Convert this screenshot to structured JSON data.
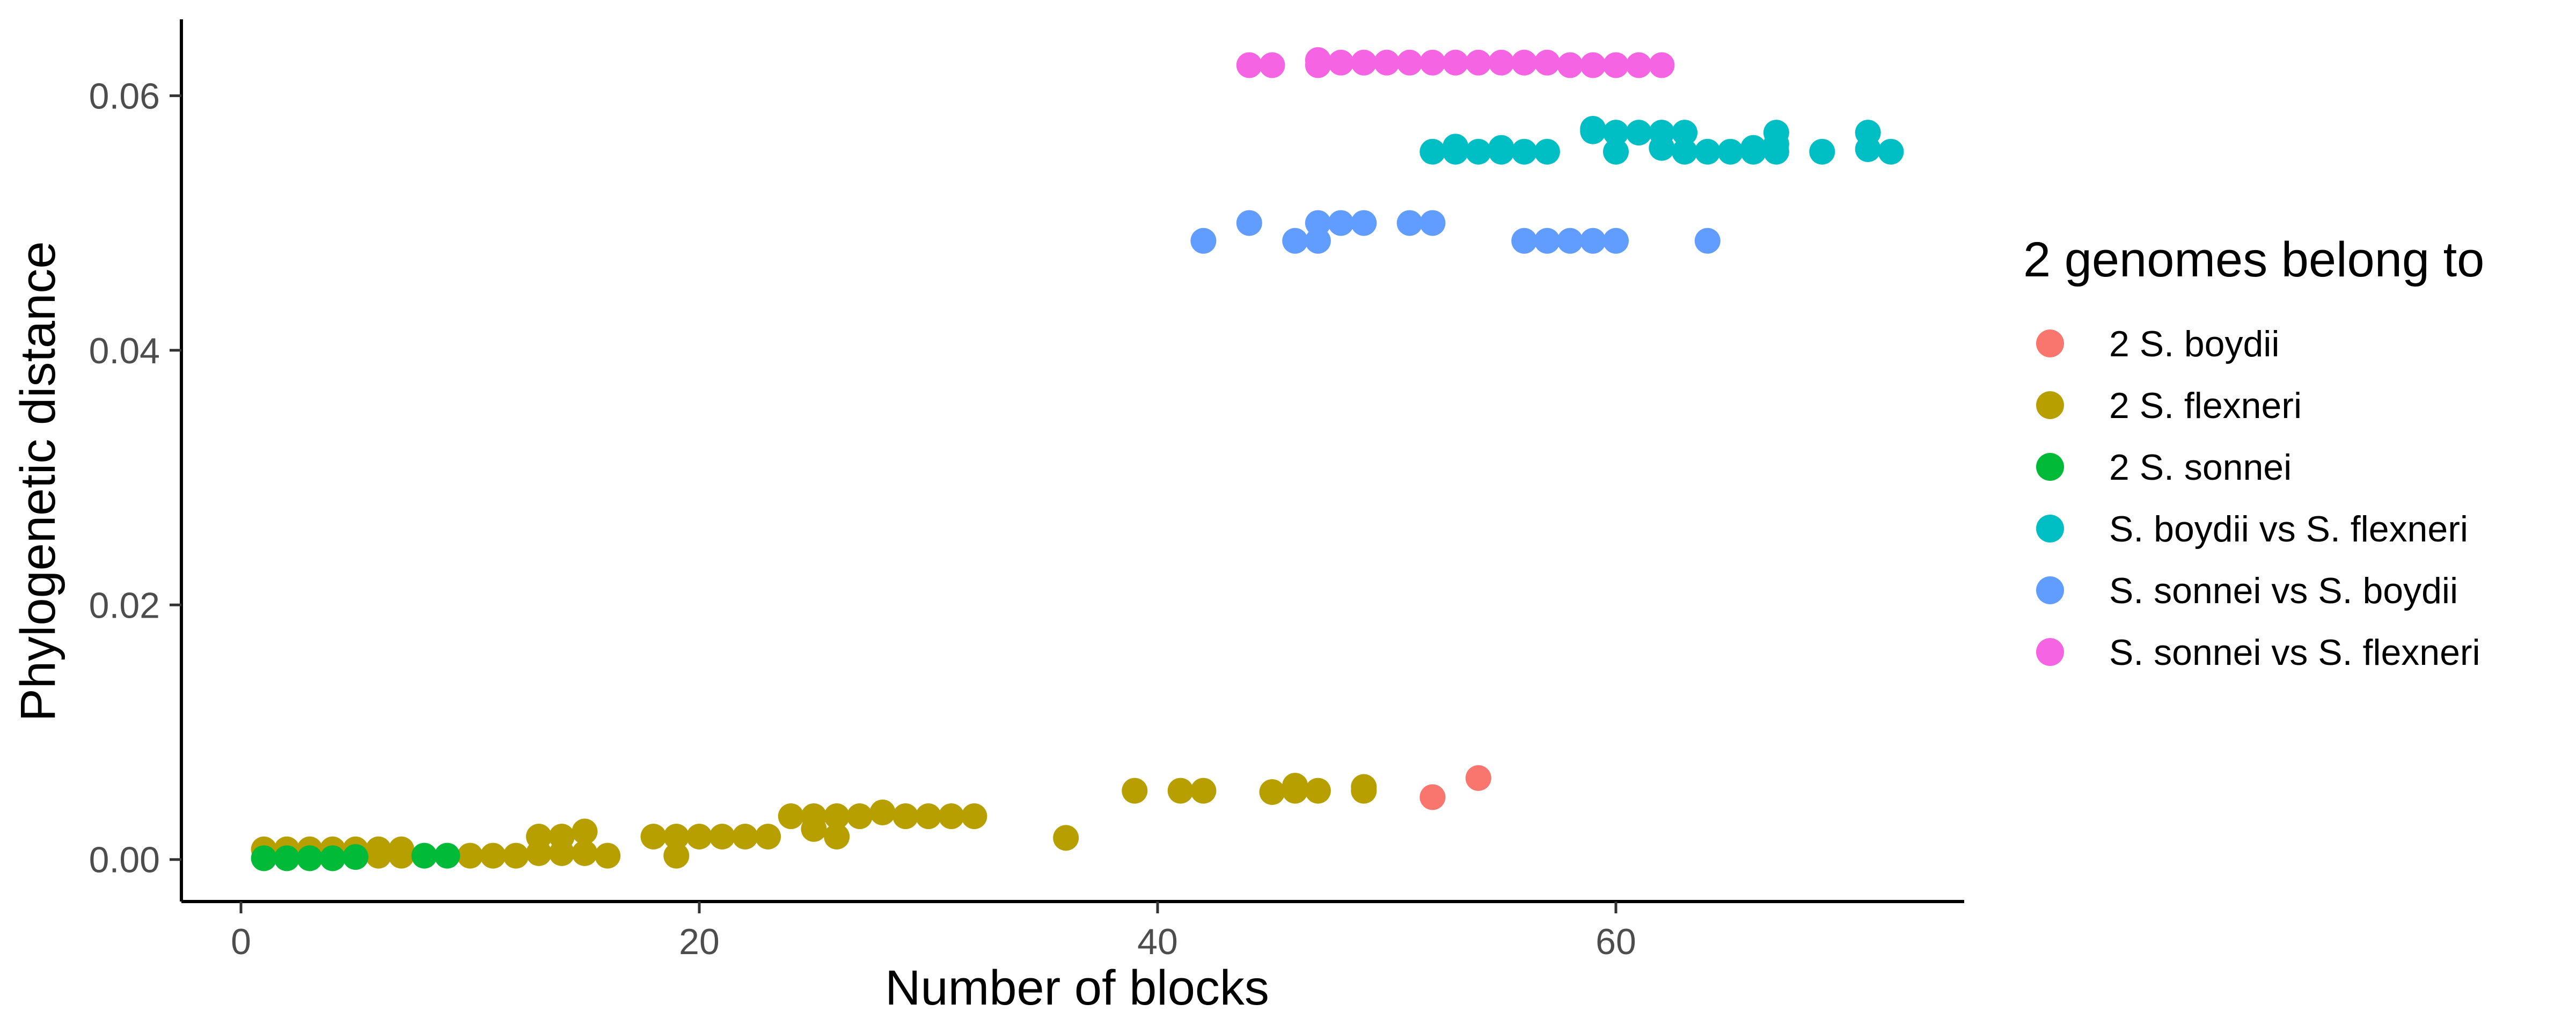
{
  "chart_data": {
    "type": "scatter",
    "xlabel": "Number of blocks",
    "ylabel": "Phylogenetic distance",
    "xlim": [
      -2.6,
      75.2
    ],
    "ylim": [
      -0.0033,
      0.066
    ],
    "x_ticks": [
      0,
      20,
      40,
      60
    ],
    "x_tick_labels": [
      "0",
      "20",
      "40",
      "60"
    ],
    "y_ticks": [
      0,
      0.02,
      0.04,
      0.06
    ],
    "y_tick_labels": [
      "0.00",
      "0.02",
      "0.04",
      "0.06"
    ],
    "grid": false,
    "legend": {
      "title": "2 genomes belong to",
      "placement": "right"
    },
    "series": [
      {
        "name": "2 S. boydii",
        "color": "#F8766D",
        "points": [
          [
            52,
            0.0049
          ],
          [
            54,
            0.0064
          ]
        ]
      },
      {
        "name": "2 S. flexneri",
        "color": "#B79F00",
        "points": [
          [
            1,
            0.0008
          ],
          [
            2,
            0.0008
          ],
          [
            3,
            0.0008
          ],
          [
            4,
            0.0008
          ],
          [
            5,
            0.0008
          ],
          [
            6,
            0.0008
          ],
          [
            7,
            0.0008
          ],
          [
            2,
            0.0003
          ],
          [
            3,
            0.0003
          ],
          [
            5,
            0.0003
          ],
          [
            6,
            0.0003
          ],
          [
            7,
            0.0003
          ],
          [
            10,
            0.0003
          ],
          [
            11,
            0.0003
          ],
          [
            12,
            0.0003
          ],
          [
            13,
            0.0018
          ],
          [
            14,
            0.0018
          ],
          [
            15,
            0.0022
          ],
          [
            13,
            0.0005
          ],
          [
            14,
            0.0005
          ],
          [
            15,
            0.0005
          ],
          [
            16,
            0.0003
          ],
          [
            18,
            0.0018
          ],
          [
            19,
            0.0018
          ],
          [
            20,
            0.0018
          ],
          [
            21,
            0.0018
          ],
          [
            22,
            0.0018
          ],
          [
            23,
            0.0018
          ],
          [
            19,
            0.0003
          ],
          [
            24,
            0.0034
          ],
          [
            25,
            0.0034
          ],
          [
            26,
            0.0034
          ],
          [
            27,
            0.0034
          ],
          [
            28,
            0.0037
          ],
          [
            29,
            0.0034
          ],
          [
            30,
            0.0034
          ],
          [
            31,
            0.0034
          ],
          [
            32,
            0.0034
          ],
          [
            25,
            0.0024
          ],
          [
            26,
            0.0018
          ],
          [
            36,
            0.0017
          ],
          [
            39,
            0.0054
          ],
          [
            41,
            0.0054
          ],
          [
            42,
            0.0054
          ],
          [
            45,
            0.0053
          ],
          [
            46,
            0.0054
          ],
          [
            46,
            0.0058
          ],
          [
            47,
            0.0054
          ],
          [
            49,
            0.0054
          ],
          [
            49,
            0.0057
          ]
        ]
      },
      {
        "name": "2 S. sonnei",
        "color": "#00BA38",
        "points": [
          [
            1,
            0.0001
          ],
          [
            2,
            0.0001
          ],
          [
            3,
            0.0001
          ],
          [
            4,
            0.0001
          ],
          [
            5,
            0.0002
          ],
          [
            8,
            0.0003
          ],
          [
            9,
            0.0003
          ]
        ]
      },
      {
        "name": "S. boydii vs S. flexneri",
        "color": "#00BFC4",
        "points": [
          [
            52,
            0.0556
          ],
          [
            53,
            0.0556
          ],
          [
            53,
            0.056
          ],
          [
            54,
            0.0556
          ],
          [
            55,
            0.0556
          ],
          [
            55,
            0.0559
          ],
          [
            56,
            0.0556
          ],
          [
            57,
            0.0556
          ],
          [
            59,
            0.0572
          ],
          [
            59,
            0.0574
          ],
          [
            60,
            0.0571
          ],
          [
            60,
            0.0556
          ],
          [
            61,
            0.0571
          ],
          [
            62,
            0.0571
          ],
          [
            62,
            0.0559
          ],
          [
            63,
            0.0571
          ],
          [
            63,
            0.0556
          ],
          [
            64,
            0.0556
          ],
          [
            65,
            0.0556
          ],
          [
            66,
            0.0556
          ],
          [
            66,
            0.0559
          ],
          [
            67,
            0.0571
          ],
          [
            67,
            0.0556
          ],
          [
            67,
            0.0562
          ],
          [
            69,
            0.0556
          ],
          [
            71,
            0.0571
          ],
          [
            71,
            0.0558
          ],
          [
            72,
            0.0556
          ]
        ]
      },
      {
        "name": "S. sonnei vs S. boydii",
        "color": "#619CFF",
        "points": [
          [
            42,
            0.0486
          ],
          [
            44,
            0.05
          ],
          [
            46,
            0.0486
          ],
          [
            47,
            0.0486
          ],
          [
            47,
            0.05
          ],
          [
            48,
            0.05
          ],
          [
            49,
            0.05
          ],
          [
            51,
            0.05
          ],
          [
            52,
            0.05
          ],
          [
            56,
            0.0486
          ],
          [
            57,
            0.0486
          ],
          [
            58,
            0.0486
          ],
          [
            59,
            0.0486
          ],
          [
            60,
            0.0486
          ],
          [
            64,
            0.0486
          ]
        ]
      },
      {
        "name": "S. sonnei vs S. flexneri",
        "color": "#F564E3",
        "points": [
          [
            44,
            0.0624
          ],
          [
            45,
            0.0624
          ],
          [
            47,
            0.0624
          ],
          [
            47,
            0.0628
          ],
          [
            48,
            0.0626
          ],
          [
            49,
            0.0626
          ],
          [
            50,
            0.0626
          ],
          [
            51,
            0.0626
          ],
          [
            52,
            0.0626
          ],
          [
            53,
            0.0626
          ],
          [
            54,
            0.0626
          ],
          [
            55,
            0.0626
          ],
          [
            56,
            0.0626
          ],
          [
            57,
            0.0626
          ],
          [
            58,
            0.0624
          ],
          [
            59,
            0.0624
          ],
          [
            60,
            0.0624
          ],
          [
            61,
            0.0624
          ],
          [
            62,
            0.0624
          ]
        ]
      }
    ]
  }
}
